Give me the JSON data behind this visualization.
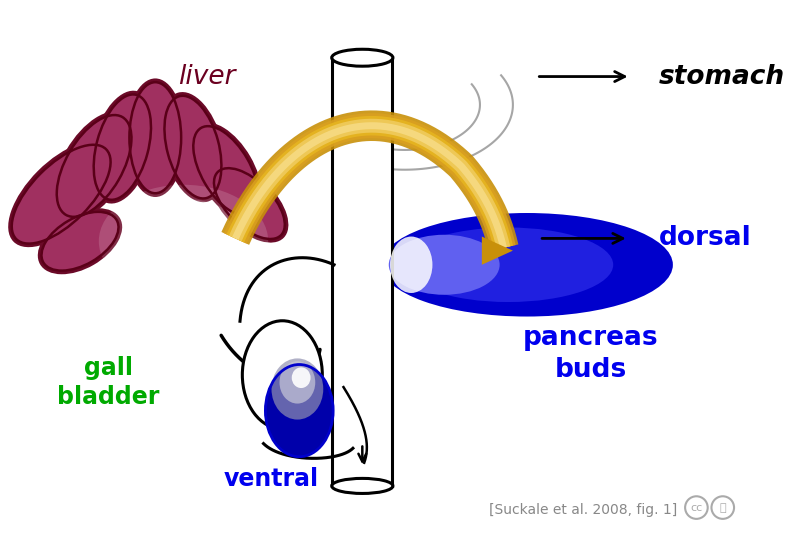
{
  "background_color": "#ffffff",
  "liver_label": "liver",
  "liver_label_color": "#6B0020",
  "liver_label_fontsize": 19,
  "gall_bladder_label": "gall\nbladder",
  "gall_bladder_label_color": "#00AA00",
  "gall_bladder_label_fontsize": 17,
  "ventral_label": "ventral",
  "ventral_label_color": "#0000EE",
  "ventral_label_fontsize": 17,
  "dorsal_label": "dorsal",
  "dorsal_label_color": "#0000EE",
  "dorsal_label_fontsize": 19,
  "stomach_label": "stomach",
  "stomach_label_color": "#000000",
  "stomach_label_fontsize": 19,
  "pancreas_label": "pancreas\nbuds",
  "pancreas_label_color": "#0000EE",
  "pancreas_label_fontsize": 19,
  "citation": "[Suckale et al. 2008, fig. 1]",
  "citation_color": "#888888",
  "citation_fontsize": 10
}
